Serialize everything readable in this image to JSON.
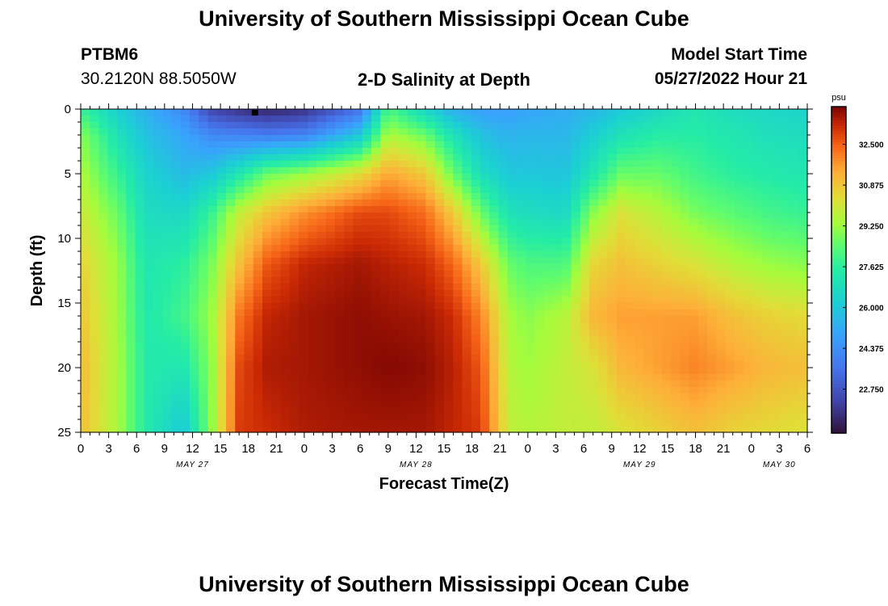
{
  "page": {
    "title": "University of Southern Mississippi Ocean Cube",
    "footer_title": "University of Southern Mississippi Ocean Cube"
  },
  "station": {
    "id": "PTBM6",
    "coords": "30.2120N  88.5050W"
  },
  "model": {
    "label": "Model Start Time",
    "start": "05/27/2022 Hour 21"
  },
  "chart_data": {
    "type": "heatmap",
    "title": "2-D Salinity at Depth",
    "xlabel": "Forecast Time(Z)",
    "ylabel": "Depth (ft)",
    "x_range_hours": [
      0,
      78
    ],
    "x_start_label_hour": 0,
    "x_tick_labels": [
      "0",
      "3",
      "6",
      "9",
      "12",
      "15",
      "18",
      "21",
      "0",
      "3",
      "6",
      "9",
      "12",
      "15",
      "18",
      "21",
      "0",
      "3",
      "6",
      "9",
      "12",
      "15",
      "18",
      "21",
      "0",
      "3",
      "6"
    ],
    "date_labels": [
      {
        "label": "MAY 27",
        "hour": 12
      },
      {
        "label": "MAY 28",
        "hour": 36
      },
      {
        "label": "MAY 29",
        "hour": 60
      },
      {
        "label": "MAY 30",
        "hour": 75
      }
    ],
    "ylim": [
      0,
      25
    ],
    "y_ticks": [
      0,
      5,
      10,
      15,
      20,
      25
    ],
    "colorbar": {
      "unit": "psu",
      "min": 21.0,
      "max": 34.0,
      "ticks": [
        "32.500",
        "30.875",
        "29.250",
        "27.625",
        "26.000",
        "24.375",
        "22.750"
      ],
      "tick_values": [
        32.5,
        30.875,
        29.25,
        27.625,
        26.0,
        24.375,
        22.75
      ]
    },
    "grid_cols": 80,
    "grid_rows": 50,
    "salinity_by_time": {
      "depths_ft": [
        0,
        2,
        5,
        8,
        12,
        16,
        20,
        25
      ],
      "profiles": [
        {
          "hour": 0,
          "values": [
            27.8,
            29.0,
            29.5,
            30.0,
            30.6,
            30.9,
            31.1,
            31.0
          ]
        },
        {
          "hour": 4,
          "values": [
            26.2,
            27.0,
            27.8,
            28.6,
            29.2,
            29.3,
            29.4,
            29.4
          ]
        },
        {
          "hour": 7,
          "values": [
            25.3,
            25.8,
            26.4,
            26.8,
            27.2,
            27.3,
            27.4,
            27.4
          ]
        },
        {
          "hour": 11,
          "values": [
            24.2,
            25.0,
            25.6,
            26.6,
            27.6,
            28.0,
            27.2,
            26.0
          ]
        },
        {
          "hour": 14,
          "values": [
            22.3,
            24.2,
            26.0,
            27.8,
            28.8,
            29.2,
            29.0,
            29.0
          ]
        },
        {
          "hour": 17,
          "values": [
            21.8,
            24.0,
            27.2,
            29.8,
            31.0,
            32.2,
            32.8,
            33.0
          ]
        },
        {
          "hour": 20,
          "values": [
            21.5,
            23.8,
            28.6,
            30.9,
            32.6,
            33.3,
            33.5,
            33.2
          ]
        },
        {
          "hour": 24,
          "values": [
            21.8,
            24.0,
            29.2,
            31.8,
            33.3,
            33.6,
            33.6,
            33.5
          ]
        },
        {
          "hour": 30,
          "values": [
            23.5,
            26.0,
            30.4,
            32.8,
            33.6,
            33.8,
            33.8,
            33.6
          ]
        },
        {
          "hour": 33,
          "values": [
            28.2,
            29.5,
            31.5,
            32.8,
            33.4,
            33.7,
            33.9,
            33.6
          ]
        },
        {
          "hour": 37,
          "values": [
            26.5,
            28.6,
            30.8,
            32.3,
            33.2,
            33.6,
            33.8,
            33.6
          ]
        },
        {
          "hour": 40,
          "values": [
            25.2,
            27.0,
            28.6,
            30.8,
            32.4,
            33.2,
            33.4,
            33.3
          ]
        },
        {
          "hour": 43,
          "values": [
            24.8,
            25.8,
            26.8,
            28.6,
            30.8,
            32.0,
            32.6,
            33.0
          ]
        },
        {
          "hour": 46,
          "values": [
            24.8,
            25.4,
            26.0,
            27.0,
            28.6,
            29.4,
            29.6,
            29.8
          ]
        },
        {
          "hour": 48,
          "values": [
            25.0,
            25.5,
            26.0,
            26.8,
            28.2,
            29.0,
            29.3,
            29.6
          ]
        },
        {
          "hour": 52,
          "values": [
            25.2,
            25.5,
            25.9,
            26.6,
            28.2,
            29.6,
            29.8,
            29.8
          ]
        },
        {
          "hour": 55,
          "values": [
            25.5,
            26.2,
            27.2,
            29.0,
            30.5,
            31.2,
            30.2,
            29.8
          ]
        },
        {
          "hour": 58,
          "values": [
            26.0,
            27.0,
            28.6,
            30.2,
            31.0,
            31.6,
            31.2,
            30.2
          ]
        },
        {
          "hour": 62,
          "values": [
            26.6,
            27.5,
            28.6,
            29.6,
            30.6,
            31.6,
            31.6,
            30.6
          ]
        },
        {
          "hour": 66,
          "values": [
            27.2,
            27.5,
            28.0,
            28.8,
            30.2,
            31.6,
            32.0,
            31.0
          ]
        },
        {
          "hour": 70,
          "values": [
            26.8,
            27.2,
            27.6,
            28.4,
            29.6,
            31.0,
            31.6,
            30.6
          ]
        },
        {
          "hour": 74,
          "values": [
            26.6,
            26.9,
            27.4,
            28.0,
            29.2,
            30.6,
            31.2,
            30.4
          ]
        },
        {
          "hour": 78,
          "values": [
            26.4,
            26.8,
            27.2,
            27.8,
            29.0,
            30.4,
            31.0,
            30.2
          ]
        }
      ]
    }
  }
}
